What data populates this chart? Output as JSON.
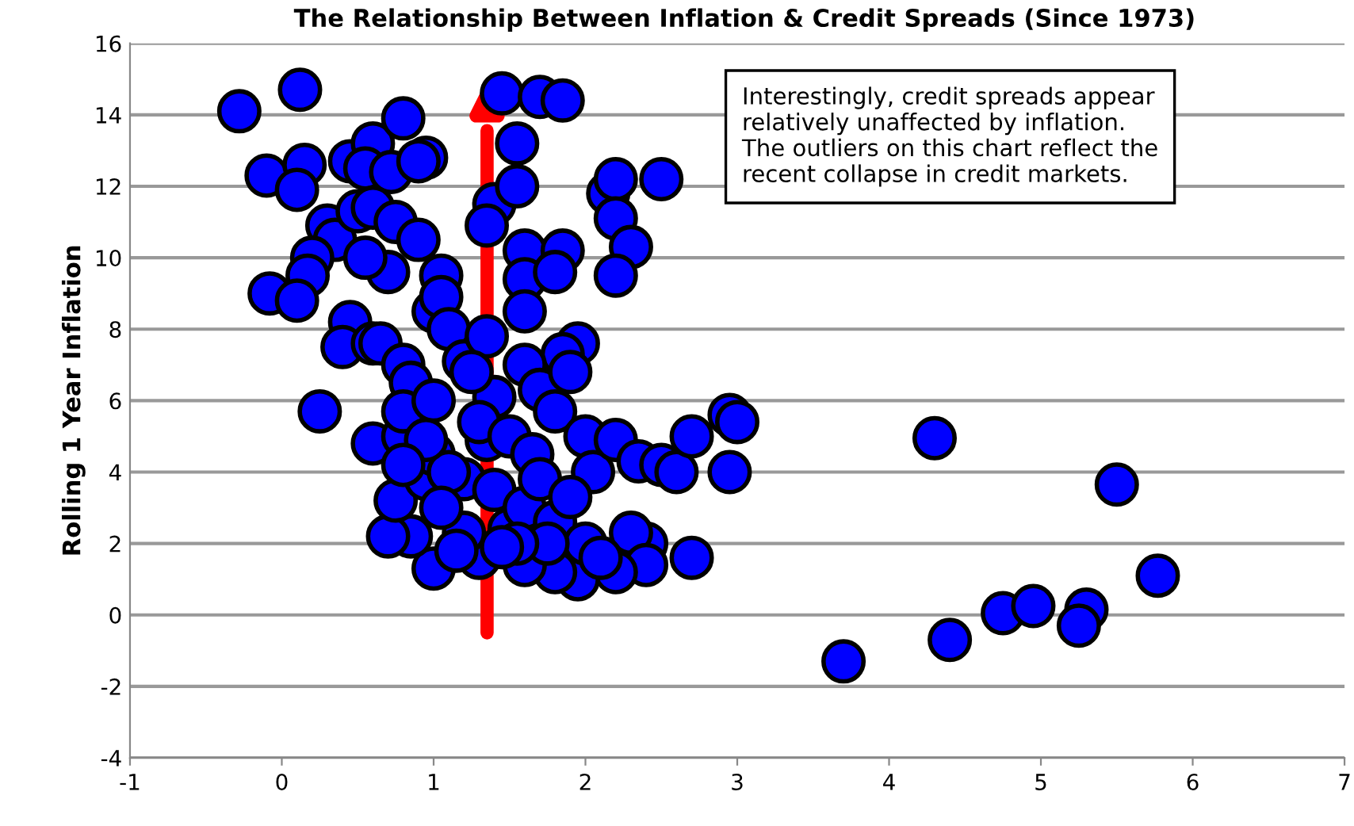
{
  "chart_data": {
    "type": "scatter",
    "title": "The Relationship Between Inflation & Credit Spreads (Since 1973)",
    "ylabel": "Rolling 1 Year Inflation",
    "annotations": [
      "Interestingly, credit spreads appear\nrelatively unaffected by inflation.\nThe outliers on this chart reflect the\nrecent collapse in credit markets."
    ],
    "xlim": [
      -1,
      7
    ],
    "xticks": [
      -1,
      0,
      1,
      2,
      3,
      4,
      5,
      6,
      7
    ],
    "ylim": [
      -4,
      16
    ],
    "yticks": [
      -4,
      -2,
      0,
      2,
      4,
      6,
      8,
      10,
      12,
      14,
      16
    ],
    "grid": "y",
    "marker": "circle",
    "series": [
      {
        "color": "#0000ff",
        "x": [
          -0.28,
          0.12,
          -0.1,
          0.15,
          0.1,
          0.3,
          0.35,
          0.2,
          0.17,
          -0.08,
          0.1,
          0.45,
          0.6,
          0.55,
          0.8,
          0.72,
          0.95,
          0.9,
          0.5,
          0.6,
          0.75,
          0.9,
          1.05,
          0.7,
          0.55,
          0.45,
          0.4,
          0.6,
          0.65,
          1.0,
          1.05,
          1.1,
          0.25,
          0.6,
          0.8,
          0.8,
          0.85,
          1.2,
          1.55,
          1.45,
          1.7,
          1.85,
          1.4,
          1.35,
          1.55,
          1.6,
          1.6,
          1.6,
          2.15,
          2.2,
          2.2,
          2.5,
          2.3,
          2.2,
          1.85,
          1.8,
          1.95,
          1.85,
          1.6,
          1.35,
          1.4,
          1.7,
          1.8,
          1.9,
          2.0,
          2.05,
          2.2,
          2.35,
          2.5,
          2.6,
          2.7,
          2.95,
          3.0,
          2.95,
          2.7,
          2.4,
          2.3,
          2.4,
          2.2,
          1.95,
          1.8,
          1.6,
          1.3,
          1.5,
          1.0,
          0.85,
          0.7,
          0.75,
          0.95,
          1.2,
          1.35,
          1.3,
          1.5,
          1.65,
          1.4,
          1.6,
          1.8,
          2.0,
          1.75,
          1.2,
          0.8,
          1.0,
          1.1,
          1.25,
          1.0,
          0.95,
          1.7,
          1.9,
          1.55,
          0.8,
          1.05,
          1.15,
          1.45,
          2.1,
          4.3,
          5.5,
          5.77,
          4.75,
          4.95,
          5.3,
          5.25,
          4.4,
          3.7
        ],
        "values": [
          14.1,
          14.7,
          12.3,
          12.6,
          11.9,
          10.9,
          10.5,
          10.0,
          9.5,
          9.0,
          8.8,
          12.7,
          13.2,
          12.5,
          13.9,
          12.4,
          12.8,
          12.7,
          11.3,
          11.4,
          11.0,
          10.5,
          9.5,
          9.6,
          10.0,
          8.2,
          7.5,
          7.6,
          7.6,
          8.5,
          8.9,
          8.0,
          5.7,
          4.8,
          5.0,
          7.0,
          6.5,
          7.1,
          13.2,
          14.6,
          14.5,
          14.4,
          11.5,
          10.9,
          12.0,
          10.2,
          9.4,
          8.5,
          11.8,
          12.2,
          11.1,
          12.2,
          10.3,
          9.5,
          10.2,
          9.6,
          7.6,
          7.3,
          7.0,
          7.8,
          6.1,
          6.3,
          5.7,
          6.8,
          5.0,
          4.0,
          4.9,
          4.3,
          4.2,
          4.0,
          5.0,
          5.6,
          5.4,
          4.0,
          1.6,
          2.0,
          2.3,
          1.4,
          1.2,
          1.0,
          1.2,
          1.4,
          1.6,
          2.4,
          1.3,
          2.2,
          2.2,
          3.2,
          3.8,
          3.8,
          4.9,
          5.4,
          5.0,
          4.5,
          3.5,
          3.0,
          2.6,
          2.0,
          2.0,
          2.3,
          5.7,
          4.5,
          4.0,
          6.8,
          6.0,
          4.9,
          3.8,
          3.3,
          2.0,
          4.2,
          3.0,
          1.8,
          1.9,
          1.6,
          4.95,
          3.65,
          1.1,
          0.05,
          0.25,
          0.15,
          -0.3,
          -0.7,
          -1.3
        ]
      }
    ]
  }
}
